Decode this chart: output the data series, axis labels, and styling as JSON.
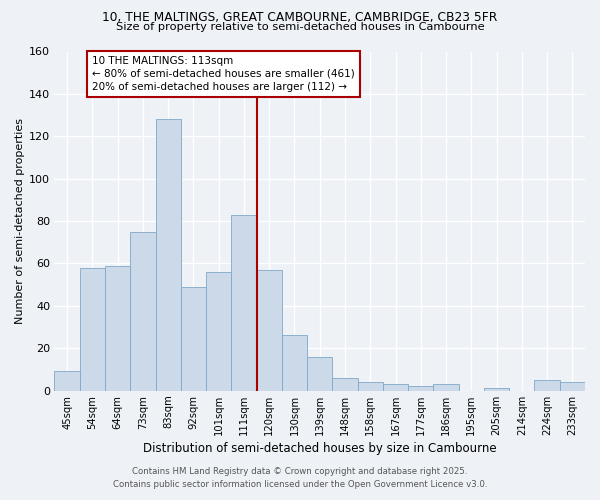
{
  "title1": "10, THE MALTINGS, GREAT CAMBOURNE, CAMBRIDGE, CB23 5FR",
  "title2": "Size of property relative to semi-detached houses in Cambourne",
  "xlabel": "Distribution of semi-detached houses by size in Cambourne",
  "ylabel": "Number of semi-detached properties",
  "categories": [
    "45sqm",
    "54sqm",
    "64sqm",
    "73sqm",
    "83sqm",
    "92sqm",
    "101sqm",
    "111sqm",
    "120sqm",
    "130sqm",
    "139sqm",
    "148sqm",
    "158sqm",
    "167sqm",
    "177sqm",
    "186sqm",
    "195sqm",
    "205sqm",
    "214sqm",
    "224sqm",
    "233sqm"
  ],
  "values": [
    9,
    58,
    59,
    75,
    128,
    49,
    56,
    83,
    57,
    26,
    16,
    6,
    4,
    3,
    2,
    3,
    0,
    1,
    0,
    5,
    4
  ],
  "bar_color": "#ccd9e8",
  "bar_edge_color": "#7fa8c8",
  "marker_index": 8,
  "marker_label": "10 THE MALTINGS: 113sqm",
  "annotation_line1": "← 80% of semi-detached houses are smaller (461)",
  "annotation_line2": "20% of semi-detached houses are larger (112) →",
  "marker_color": "#aa0000",
  "ylim": [
    0,
    160
  ],
  "yticks": [
    0,
    20,
    40,
    60,
    80,
    100,
    120,
    140,
    160
  ],
  "footer1": "Contains HM Land Registry data © Crown copyright and database right 2025.",
  "footer2": "Contains public sector information licensed under the Open Government Licence v3.0.",
  "bg_color": "#eef2f7"
}
